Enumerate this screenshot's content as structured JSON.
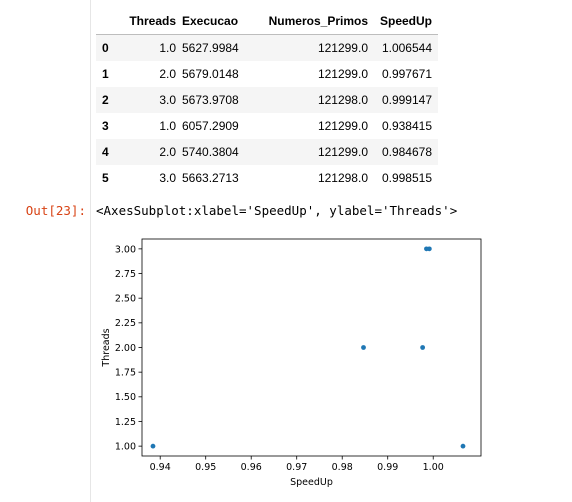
{
  "cell": {
    "out_prompt": "Out[23]:",
    "out_text": "<AxesSubplot:xlabel='SpeedUp', ylabel='Threads'>"
  },
  "table": {
    "columns": [
      "",
      "Threads",
      "Execucao",
      "Numeros_Primos",
      "SpeedUp"
    ],
    "rows": [
      {
        "index": "0",
        "threads": "1.0",
        "execucao": "5627.9984",
        "numeros_primos": "121299.0",
        "speedup": "1.006544"
      },
      {
        "index": "1",
        "threads": "2.0",
        "execucao": "5679.0148",
        "numeros_primos": "121299.0",
        "speedup": "0.997671"
      },
      {
        "index": "2",
        "threads": "3.0",
        "execucao": "5673.9708",
        "numeros_primos": "121298.0",
        "speedup": "0.999147"
      },
      {
        "index": "3",
        "threads": "1.0",
        "execucao": "6057.2909",
        "numeros_primos": "121299.0",
        "speedup": "0.938415"
      },
      {
        "index": "4",
        "threads": "2.0",
        "execucao": "5740.3804",
        "numeros_primos": "121299.0",
        "speedup": "0.984678"
      },
      {
        "index": "5",
        "threads": "3.0",
        "execucao": "5663.2713",
        "numeros_primos": "121298.0",
        "speedup": "0.998515"
      }
    ]
  },
  "chart_data": {
    "type": "scatter",
    "xlabel": "SpeedUp",
    "ylabel": "Threads",
    "xlim": [
      0.936,
      1.0105
    ],
    "ylim": [
      0.9,
      3.1
    ],
    "xticks": [
      0.94,
      0.95,
      0.96,
      0.97,
      0.98,
      0.99,
      1.0
    ],
    "xtick_labels": [
      "0.94",
      "0.95",
      "0.96",
      "0.97",
      "0.98",
      "0.99",
      "1.00"
    ],
    "yticks": [
      1.0,
      1.25,
      1.5,
      1.75,
      2.0,
      2.25,
      2.5,
      2.75,
      3.0
    ],
    "ytick_labels": [
      "1.00",
      "1.25",
      "1.50",
      "1.75",
      "2.00",
      "2.25",
      "2.50",
      "2.75",
      "3.00"
    ],
    "grid": false,
    "marker_color": "#1f77b4",
    "points": [
      {
        "x": 1.006544,
        "y": 1.0
      },
      {
        "x": 0.997671,
        "y": 2.0
      },
      {
        "x": 0.999147,
        "y": 3.0
      },
      {
        "x": 0.938415,
        "y": 1.0
      },
      {
        "x": 0.984678,
        "y": 2.0
      },
      {
        "x": 0.998515,
        "y": 3.0
      }
    ]
  }
}
